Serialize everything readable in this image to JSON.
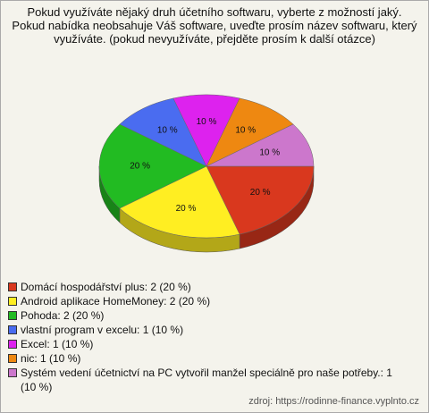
{
  "chart_data": {
    "type": "pie",
    "title": "Pokud využíváte nějaký druh účetního softwaru, vyberte z možností jaký. Pokud nabídka neobsahuje Váš software, uveďte prosím název softwaru, který využíváte. (pokud nevyužíváte, přejděte prosím k další otázce)",
    "categories": [
      "Domácí hospodářství plus: 2 (20 %)",
      "Android aplikace HomeMoney: 2 (20 %)",
      "Pohoda: 2 (20 %)",
      "vlastní program v excelu: 1 (10 %)",
      "Excel: 1 (10 %)",
      "nic: 1 (10 %)",
      "Systém vedení účetnictví na PC vytvořil manžel speciálně pro naše potřeby.: 1 (10 %)"
    ],
    "values": [
      20,
      20,
      20,
      10,
      10,
      10,
      10
    ],
    "value_labels": [
      "20 %",
      "20 %",
      "20 %",
      "10 %",
      "10 %",
      "10 %",
      "10 %"
    ],
    "colors": [
      "#d9381e",
      "#ffee22",
      "#22bb22",
      "#4a6cf0",
      "#dd22ee",
      "#ee8811",
      "#cc77cc"
    ],
    "source": "zdroj: https://rodinne-finance.vyplnto.cz"
  }
}
